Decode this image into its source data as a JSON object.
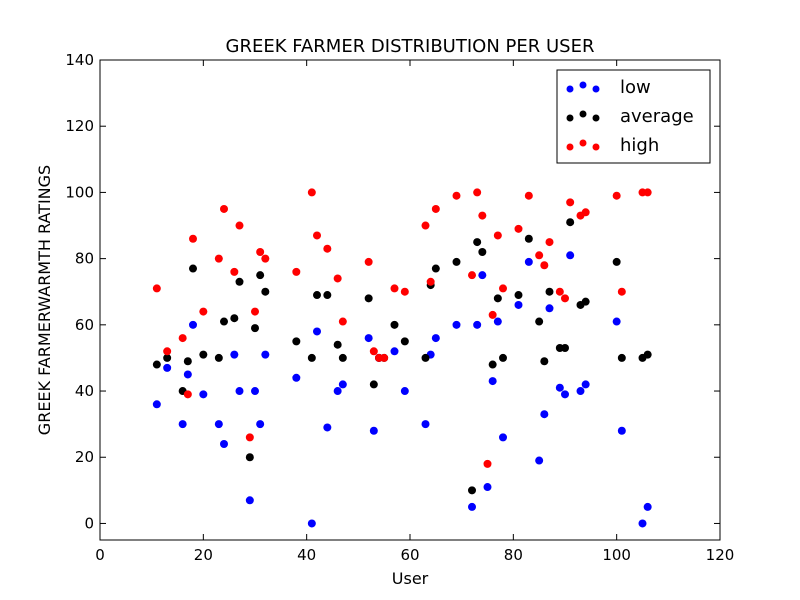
{
  "chart_data": {
    "type": "scatter",
    "title": "GREEK FARMER DISTRIBUTION PER USER",
    "xlabel": "User",
    "ylabel": "GREEK FARMERWARMTH RATINGS",
    "xlim": [
      0,
      120
    ],
    "ylim": [
      -5,
      140
    ],
    "xticks": [
      0,
      20,
      40,
      60,
      80,
      100,
      120
    ],
    "yticks": [
      0,
      20,
      40,
      60,
      80,
      100,
      120,
      140
    ],
    "grid": false,
    "legend_position": "top-right",
    "series": [
      {
        "name": "low",
        "color": "#0000ff",
        "points": [
          [
            11,
            36
          ],
          [
            13,
            47
          ],
          [
            16,
            30
          ],
          [
            17,
            45
          ],
          [
            18,
            60
          ],
          [
            20,
            39
          ],
          [
            23,
            30
          ],
          [
            24,
            24
          ],
          [
            26,
            51
          ],
          [
            27,
            40
          ],
          [
            29,
            7
          ],
          [
            30,
            40
          ],
          [
            31,
            30
          ],
          [
            32,
            51
          ],
          [
            38,
            44
          ],
          [
            41,
            0
          ],
          [
            42,
            58
          ],
          [
            44,
            29
          ],
          [
            46,
            40
          ],
          [
            47,
            42
          ],
          [
            52,
            56
          ],
          [
            53,
            28
          ],
          [
            54,
            50
          ],
          [
            57,
            52
          ],
          [
            59,
            40
          ],
          [
            63,
            30
          ],
          [
            64,
            51
          ],
          [
            65,
            56
          ],
          [
            69,
            60
          ],
          [
            72,
            5
          ],
          [
            73,
            60
          ],
          [
            74,
            75
          ],
          [
            75,
            11
          ],
          [
            76,
            43
          ],
          [
            77,
            61
          ],
          [
            78,
            26
          ],
          [
            81,
            66
          ],
          [
            83,
            79
          ],
          [
            85,
            19
          ],
          [
            86,
            33
          ],
          [
            87,
            65
          ],
          [
            89,
            41
          ],
          [
            90,
            39
          ],
          [
            91,
            81
          ],
          [
            93,
            40
          ],
          [
            94,
            42
          ],
          [
            100,
            61
          ],
          [
            101,
            28
          ],
          [
            105,
            0
          ],
          [
            106,
            5
          ]
        ]
      },
      {
        "name": "average",
        "color": "#000000",
        "points": [
          [
            11,
            48
          ],
          [
            13,
            50
          ],
          [
            16,
            40
          ],
          [
            17,
            49
          ],
          [
            18,
            77
          ],
          [
            20,
            51
          ],
          [
            23,
            50
          ],
          [
            24,
            61
          ],
          [
            26,
            62
          ],
          [
            27,
            73
          ],
          [
            29,
            20
          ],
          [
            30,
            59
          ],
          [
            31,
            75
          ],
          [
            32,
            70
          ],
          [
            38,
            55
          ],
          [
            41,
            50
          ],
          [
            42,
            69
          ],
          [
            44,
            69
          ],
          [
            46,
            54
          ],
          [
            47,
            50
          ],
          [
            52,
            68
          ],
          [
            53,
            42
          ],
          [
            54,
            50
          ],
          [
            55,
            50
          ],
          [
            57,
            60
          ],
          [
            59,
            55
          ],
          [
            63,
            50
          ],
          [
            64,
            72
          ],
          [
            65,
            77
          ],
          [
            69,
            79
          ],
          [
            72,
            10
          ],
          [
            73,
            85
          ],
          [
            74,
            82
          ],
          [
            76,
            48
          ],
          [
            77,
            68
          ],
          [
            78,
            50
          ],
          [
            81,
            69
          ],
          [
            83,
            86
          ],
          [
            85,
            61
          ],
          [
            86,
            49
          ],
          [
            87,
            70
          ],
          [
            89,
            53
          ],
          [
            90,
            53
          ],
          [
            91,
            91
          ],
          [
            93,
            66
          ],
          [
            94,
            67
          ],
          [
            100,
            79
          ],
          [
            101,
            50
          ],
          [
            105,
            50
          ],
          [
            106,
            51
          ]
        ]
      },
      {
        "name": "high",
        "color": "#ff0000",
        "points": [
          [
            11,
            71
          ],
          [
            13,
            52
          ],
          [
            16,
            56
          ],
          [
            17,
            39
          ],
          [
            18,
            86
          ],
          [
            20,
            64
          ],
          [
            23,
            80
          ],
          [
            24,
            95
          ],
          [
            26,
            76
          ],
          [
            27,
            90
          ],
          [
            29,
            26
          ],
          [
            30,
            64
          ],
          [
            31,
            82
          ],
          [
            32,
            80
          ],
          [
            38,
            76
          ],
          [
            41,
            100
          ],
          [
            42,
            87
          ],
          [
            44,
            83
          ],
          [
            46,
            74
          ],
          [
            47,
            61
          ],
          [
            52,
            79
          ],
          [
            53,
            52
          ],
          [
            54,
            50
          ],
          [
            55,
            50
          ],
          [
            57,
            71
          ],
          [
            59,
            70
          ],
          [
            63,
            90
          ],
          [
            64,
            73
          ],
          [
            65,
            95
          ],
          [
            69,
            99
          ],
          [
            72,
            75
          ],
          [
            73,
            100
          ],
          [
            74,
            93
          ],
          [
            75,
            18
          ],
          [
            76,
            63
          ],
          [
            77,
            87
          ],
          [
            78,
            71
          ],
          [
            81,
            89
          ],
          [
            83,
            99
          ],
          [
            85,
            81
          ],
          [
            86,
            78
          ],
          [
            87,
            85
          ],
          [
            89,
            70
          ],
          [
            90,
            68
          ],
          [
            91,
            97
          ],
          [
            93,
            93
          ],
          [
            94,
            94
          ],
          [
            100,
            99
          ],
          [
            101,
            70
          ],
          [
            105,
            100
          ],
          [
            106,
            100
          ]
        ]
      }
    ]
  }
}
